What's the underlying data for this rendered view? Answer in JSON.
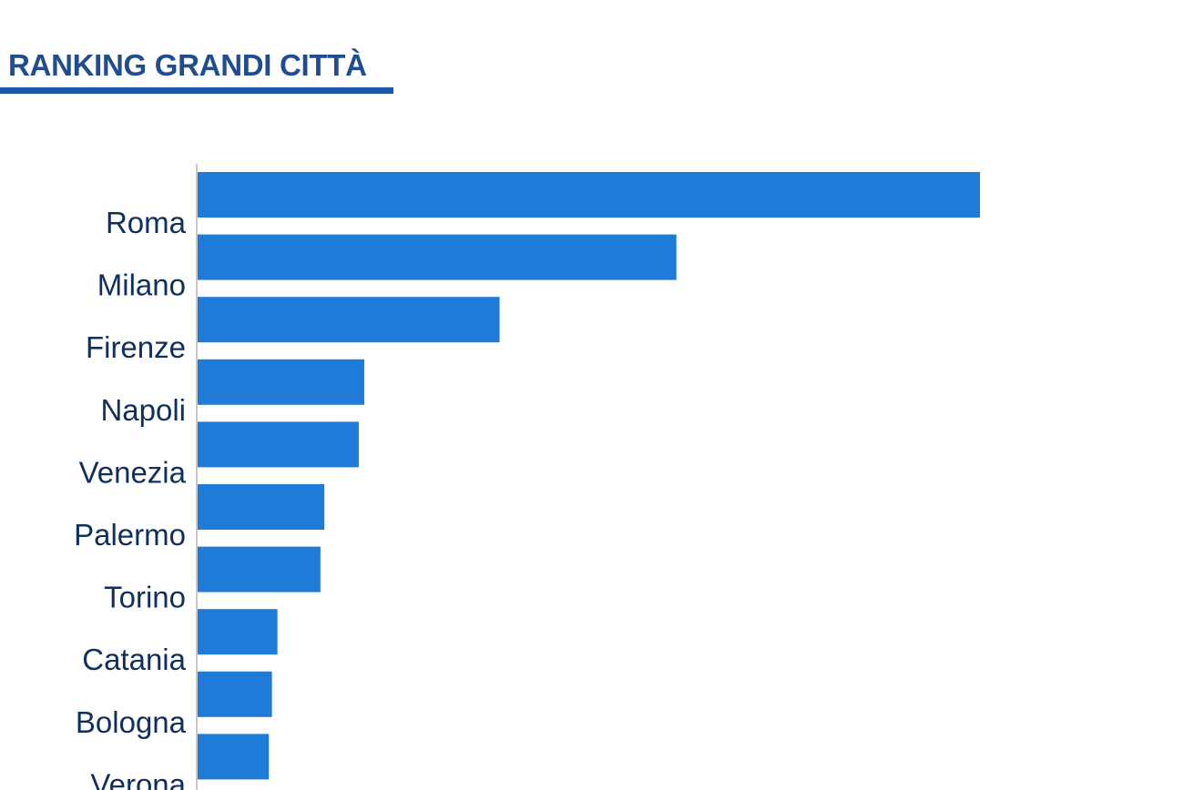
{
  "header": {
    "title": "RANKING GRANDI CITTÀ"
  },
  "colors": {
    "bar": "#1f7ad8",
    "axis": "#c8c8c8",
    "title": "#1f4d8f",
    "underline": "#1a58a8",
    "label": "#0f2f5c"
  },
  "chart_data": {
    "type": "bar",
    "orientation": "horizontal",
    "categories": [
      "Roma",
      "Milano",
      "Firenze",
      "Napoli",
      "Venezia",
      "Palermo",
      "Torino",
      "Catania",
      "Bologna",
      "Verona"
    ],
    "values": [
      100,
      61.2,
      38.6,
      21.3,
      20.6,
      16.2,
      15.7,
      10.2,
      9.5,
      9.1
    ],
    "xlim": [
      0,
      100
    ],
    "grid": false,
    "legend": "none"
  }
}
